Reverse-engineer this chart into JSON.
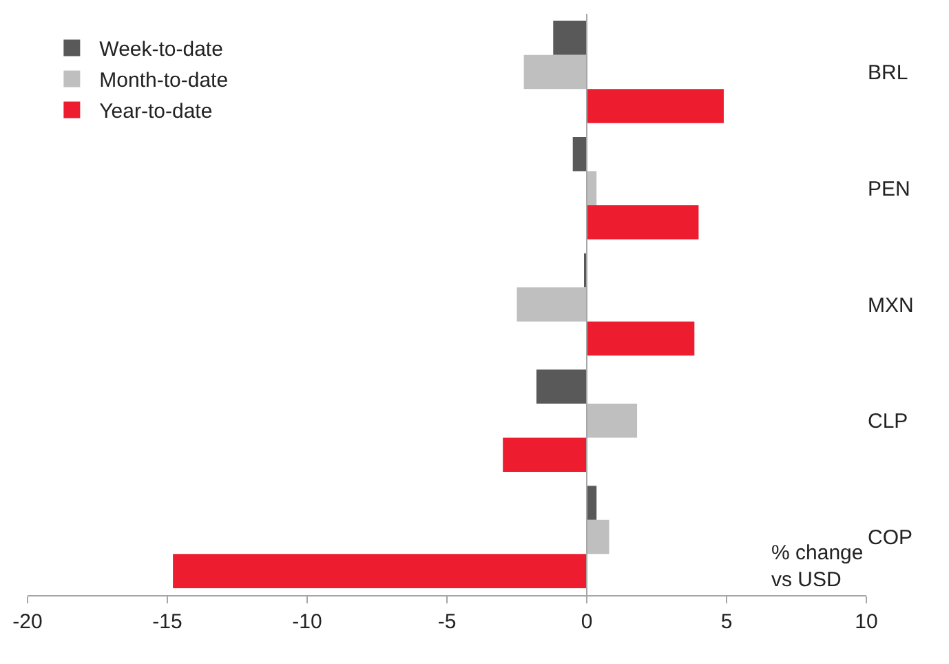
{
  "chart_data": {
    "type": "bar",
    "orientation": "horizontal",
    "categories": [
      "BRL",
      "PEN",
      "MXN",
      "CLP",
      "COP"
    ],
    "series": [
      {
        "name": "Week-to-date",
        "color": "#595959",
        "values": [
          -1.2,
          -0.5,
          -0.05,
          -1.8,
          0.35
        ]
      },
      {
        "name": "Month-to-date",
        "color": "#bfbfbf",
        "values": [
          -2.25,
          0.35,
          -2.5,
          1.8,
          0.8
        ]
      },
      {
        "name": "Year-to-date",
        "color": "#ed1c2e",
        "values": [
          4.9,
          4.0,
          3.85,
          -3.0,
          -14.8
        ]
      }
    ],
    "xlim": [
      -20,
      10
    ],
    "xticks": [
      -20,
      -15,
      -10,
      -5,
      0,
      5,
      10
    ],
    "annotations": [
      "% change\nvs USD"
    ],
    "ref_lines": [
      {
        "axis": "x",
        "value": 0,
        "color": "#a6a6a6"
      }
    ],
    "legend": "top left"
  }
}
